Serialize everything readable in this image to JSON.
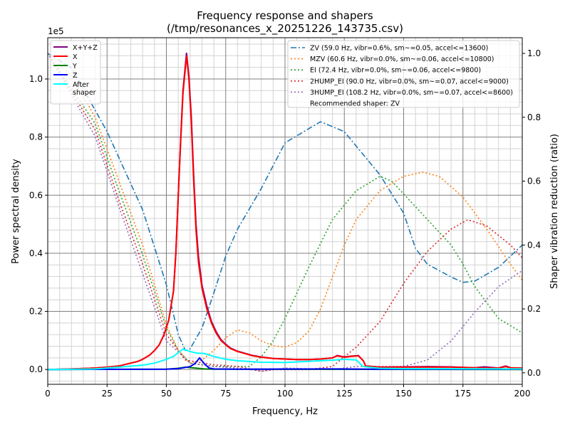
{
  "chart_data": {
    "type": "line",
    "title": "Frequency response and shapers",
    "subtitle": "(/tmp/resonances_x_20251226_143735.csv)",
    "xlabel": "Frequency, Hz",
    "ylabel": "Power spectral density",
    "ylabel_right": "Shaper vibration reduction (ratio)",
    "y_offset_label": "1e5",
    "xlim": [
      0,
      200
    ],
    "ylim": [
      -0.051,
      1.142
    ],
    "ylim_right": [
      -0.036,
      1.049
    ],
    "grid": true,
    "x_ticks": [
      "0",
      "25",
      "50",
      "75",
      "100",
      "125",
      "150",
      "175",
      "200"
    ],
    "y_ticks": [
      "0.0",
      "0.2",
      "0.4",
      "0.6",
      "0.8",
      "1.0"
    ],
    "y_ticks_right": [
      "0.0",
      "0.2",
      "0.4",
      "0.6",
      "0.8",
      "1.0"
    ],
    "psd_legend_placement": "upper-left",
    "shaper_legend_placement": "upper-right",
    "recommended_text": "Recommended shaper: ZV",
    "psd_series": [
      {
        "name": "X+Y+Z",
        "color": "#800080",
        "x": [
          0,
          10,
          20,
          25,
          30,
          35,
          38,
          40,
          43,
          45,
          47,
          49,
          51,
          53,
          54,
          55,
          56,
          57,
          58.5,
          59.5,
          60.5,
          61.5,
          62.5,
          63.5,
          65,
          67,
          69,
          71,
          73,
          75,
          77,
          80,
          83,
          86,
          90,
          95,
          100,
          105,
          110,
          115,
          120,
          122,
          125,
          128,
          131,
          133,
          134,
          140,
          150,
          160,
          170,
          180,
          184,
          190,
          193,
          195,
          200
        ],
        "y": [
          0,
          0.002,
          0.005,
          0.008,
          0.012,
          0.022,
          0.028,
          0.035,
          0.05,
          0.065,
          0.085,
          0.12,
          0.17,
          0.27,
          0.4,
          0.6,
          0.79,
          0.96,
          1.09,
          1.01,
          0.87,
          0.67,
          0.5,
          0.39,
          0.29,
          0.22,
          0.165,
          0.13,
          0.103,
          0.087,
          0.074,
          0.063,
          0.056,
          0.049,
          0.043,
          0.038,
          0.036,
          0.034,
          0.034,
          0.036,
          0.04,
          0.048,
          0.043,
          0.046,
          0.048,
          0.03,
          0.012,
          0.008,
          0.009,
          0.01,
          0.009,
          0.006,
          0.009,
          0.005,
          0.012,
          0.006,
          0.003
        ]
      },
      {
        "name": "X",
        "color": "#ff0000",
        "x": [
          0,
          10,
          20,
          25,
          30,
          35,
          38,
          40,
          43,
          45,
          47,
          49,
          51,
          53,
          54,
          55,
          56,
          57,
          58.5,
          59.5,
          60.5,
          61.5,
          62.5,
          63.5,
          65,
          67,
          69,
          71,
          73,
          75,
          77,
          80,
          83,
          86,
          90,
          95,
          100,
          105,
          110,
          115,
          120,
          122,
          125,
          128,
          131,
          133,
          134,
          140,
          150,
          160,
          170,
          180,
          190,
          193,
          195,
          200
        ],
        "y": [
          0,
          0.002,
          0.005,
          0.008,
          0.012,
          0.022,
          0.028,
          0.035,
          0.05,
          0.065,
          0.085,
          0.12,
          0.17,
          0.27,
          0.4,
          0.6,
          0.78,
          0.95,
          1.08,
          1.0,
          0.85,
          0.65,
          0.48,
          0.37,
          0.28,
          0.21,
          0.16,
          0.125,
          0.1,
          0.085,
          0.072,
          0.062,
          0.055,
          0.048,
          0.042,
          0.038,
          0.036,
          0.034,
          0.034,
          0.036,
          0.04,
          0.047,
          0.042,
          0.045,
          0.047,
          0.03,
          0.012,
          0.008,
          0.008,
          0.008,
          0.008,
          0.006,
          0.005,
          0.01,
          0.006,
          0.005
        ]
      },
      {
        "name": "Y",
        "color": "#008000",
        "x": [
          0,
          50,
          55,
          58,
          62,
          66,
          70,
          200
        ],
        "y": [
          0,
          0.001,
          0.004,
          0.008,
          0.005,
          0.002,
          0.001,
          0.0
        ]
      },
      {
        "name": "Z",
        "color": "#0000ff",
        "x": [
          0,
          50,
          55,
          60,
          62,
          64,
          66,
          68,
          70,
          80,
          120,
          140,
          200
        ],
        "y": [
          0,
          0.001,
          0.003,
          0.01,
          0.02,
          0.04,
          0.02,
          0.005,
          0.002,
          0.001,
          0.002,
          0.001,
          0.001
        ]
      },
      {
        "name": "After\nshaper",
        "color": "#00ffff",
        "x": [
          0,
          20,
          30,
          40,
          45,
          50,
          53,
          55,
          57,
          60,
          63,
          66,
          70,
          75,
          80,
          90,
          100,
          110,
          115,
          120,
          125,
          130,
          133,
          140,
          150,
          200
        ],
        "y": [
          0,
          0.002,
          0.008,
          0.015,
          0.022,
          0.035,
          0.045,
          0.058,
          0.07,
          0.062,
          0.056,
          0.055,
          0.045,
          0.035,
          0.03,
          0.025,
          0.024,
          0.028,
          0.03,
          0.032,
          0.035,
          0.033,
          0.01,
          0.004,
          0.003,
          0.002
        ]
      }
    ],
    "shaper_series": [
      {
        "name": "ZV (59.0 Hz, vibr=0.6%, sm~=0.05, accel<=13600)",
        "color": "#1f77b4",
        "dash": "dashdot",
        "x": [
          0,
          10,
          25,
          40,
          50,
          55,
          58,
          60,
          65,
          70,
          75,
          80,
          90,
          100,
          115,
          125,
          130,
          140,
          150,
          155,
          160,
          170,
          175,
          180,
          190,
          200
        ],
        "y": [
          1.0,
          0.955,
          0.755,
          0.51,
          0.276,
          0.12,
          0.07,
          0.075,
          0.14,
          0.25,
          0.365,
          0.45,
          0.577,
          0.72,
          0.786,
          0.755,
          0.71,
          0.62,
          0.5,
          0.39,
          0.34,
          0.3,
          0.283,
          0.287,
          0.33,
          0.4
        ]
      },
      {
        "name": "MZV (60.6 Hz, vibr=0.0%, sm~=0.06, accel<=10800)",
        "color": "#ff7f0e",
        "dash": "dotted",
        "x": [
          0,
          10,
          20,
          25,
          30,
          40,
          50,
          55,
          60,
          65,
          70,
          75,
          80,
          85,
          90,
          95,
          100,
          105,
          110,
          115,
          120,
          125,
          130,
          140,
          150,
          158,
          165,
          175,
          185,
          195,
          200
        ],
        "y": [
          1.0,
          0.93,
          0.8,
          0.7,
          0.6,
          0.4,
          0.15,
          0.07,
          0.03,
          0.04,
          0.07,
          0.11,
          0.134,
          0.125,
          0.1,
          0.085,
          0.08,
          0.095,
          0.13,
          0.2,
          0.3,
          0.4,
          0.48,
          0.57,
          0.615,
          0.628,
          0.615,
          0.55,
          0.45,
          0.34,
          0.29
        ]
      },
      {
        "name": "EI (72.4 Hz, vibr=0.0%, sm~=0.06, accel<=9800)",
        "color": "#2ca02c",
        "dash": "dotted",
        "x": [
          0,
          20,
          30,
          40,
          50,
          55,
          60,
          70,
          80,
          85,
          90,
          95,
          100,
          110,
          120,
          130,
          140,
          145,
          150,
          160,
          170,
          175,
          180,
          190,
          200
        ],
        "y": [
          1.0,
          0.78,
          0.57,
          0.37,
          0.14,
          0.07,
          0.03,
          0.02,
          0.02,
          0.02,
          0.05,
          0.1,
          0.17,
          0.33,
          0.48,
          0.57,
          0.615,
          0.6,
          0.56,
          0.48,
          0.4,
          0.34,
          0.27,
          0.17,
          0.125
        ]
      },
      {
        "name": "2HUMP_EI (90.0 Hz, vibr=0.0%, sm~=0.07, accel<=9000)",
        "color": "#d62728",
        "dash": "dotted",
        "x": [
          0,
          20,
          30,
          40,
          50,
          58,
          70,
          80,
          90,
          95,
          100,
          110,
          120,
          130,
          140,
          150,
          160,
          170,
          177,
          185,
          195,
          200
        ],
        "y": [
          1.0,
          0.76,
          0.54,
          0.34,
          0.12,
          0.04,
          0.025,
          0.02,
          0.005,
          0.01,
          0.01,
          0.01,
          0.02,
          0.08,
          0.16,
          0.28,
          0.38,
          0.45,
          0.479,
          0.46,
          0.4,
          0.36
        ]
      },
      {
        "name": "3HUMP_EI (108.2 Hz, vibr=0.0%, sm~=0.07, accel<=8600)",
        "color": "#9467bd",
        "dash": "dotted",
        "x": [
          0,
          20,
          30,
          40,
          50,
          60,
          70,
          80,
          90,
          100,
          120,
          130,
          140,
          150,
          160,
          170,
          180,
          190,
          200
        ],
        "y": [
          1.0,
          0.74,
          0.52,
          0.31,
          0.1,
          0.03,
          0.02,
          0.015,
          0.005,
          0.015,
          0.01,
          0.02,
          0.02,
          0.02,
          0.04,
          0.1,
          0.19,
          0.27,
          0.32
        ]
      }
    ]
  }
}
